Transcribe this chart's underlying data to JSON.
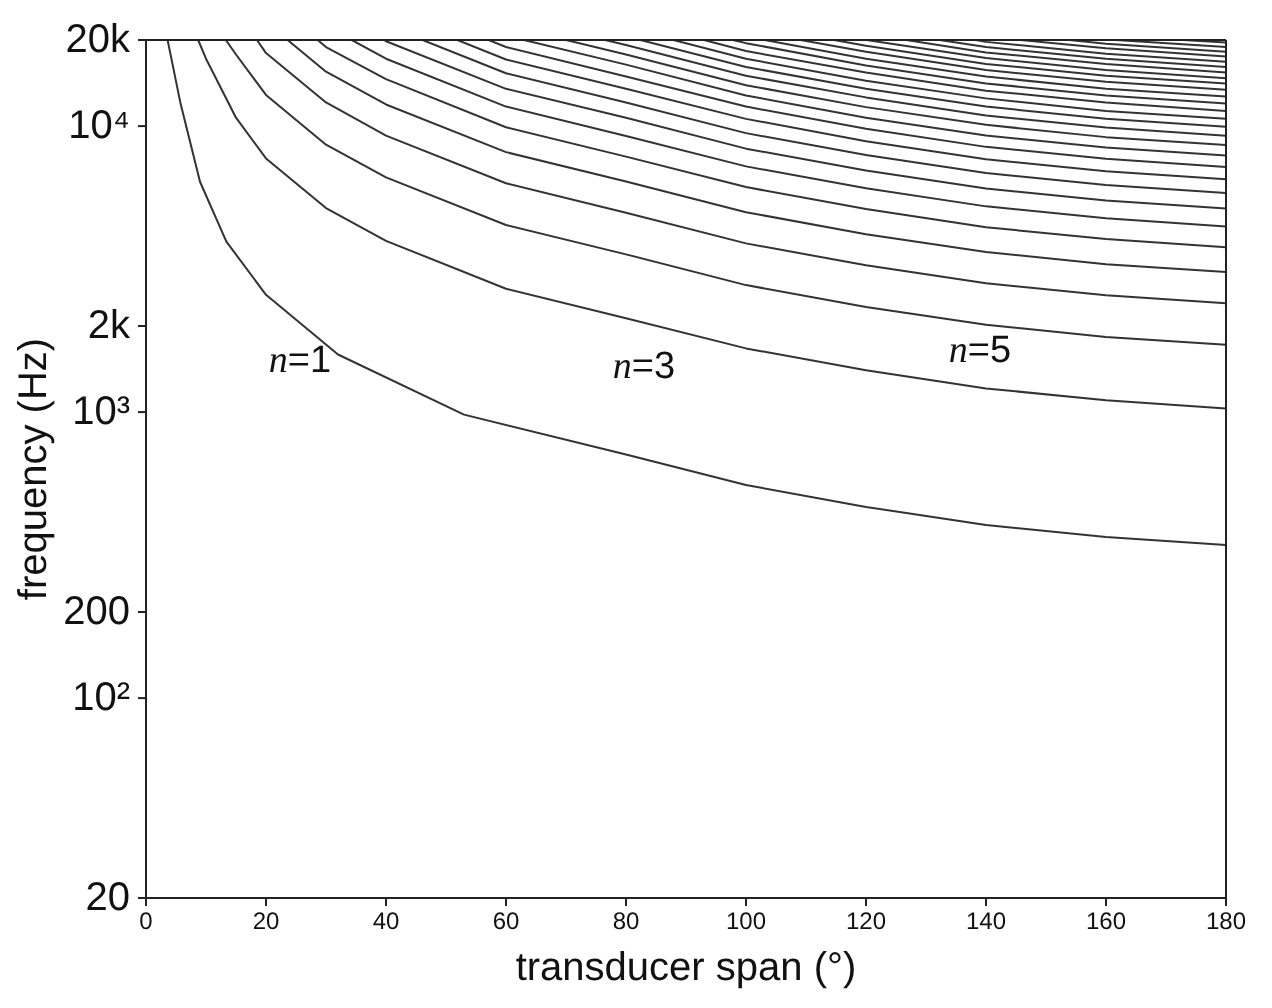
{
  "chart_data": {
    "type": "line",
    "xlabel": "transducer span (°)",
    "ylabel": "frequency (Hz)",
    "log": "y",
    "marker": "none",
    "line_style": "solid",
    "xlim": [
      0,
      180
    ],
    "xticks": [
      0,
      20,
      40,
      60,
      80,
      100,
      120,
      140,
      160,
      180
    ],
    "ylim": [
      20,
      20000
    ],
    "yticks": [
      {
        "value": 20,
        "label": "20"
      },
      {
        "value": 100,
        "label": "10²"
      },
      {
        "value": 200,
        "label": "200"
      },
      {
        "value": 1000,
        "label": "10³"
      },
      {
        "value": 2000,
        "label": "2k"
      },
      {
        "value": 10000,
        "label": "10⁴"
      },
      {
        "value": 20000,
        "label": "20k"
      }
    ],
    "annotations": [
      "n=1",
      "n=3",
      "n=5"
    ],
    "series": [
      {
        "color": "#333333",
        "x": [
          3.6,
          5.7,
          9,
          13.4,
          20,
          32,
          53,
          80,
          100,
          120,
          140,
          160,
          180
        ],
        "values": [
          20000,
          12150,
          6390,
          3945,
          2570,
          1590,
          980,
          711,
          556,
          466,
          403,
          366,
          343
        ]
      },
      {
        "color": "#333333",
        "x": [
          8.7,
          10,
          15,
          20,
          30,
          40,
          60,
          80,
          100,
          120,
          140,
          160,
          180
        ],
        "values": [
          20000,
          17200,
          10700,
          7710,
          5170,
          3970,
          2700,
          2130,
          1670,
          1400,
          1210,
          1100,
          1030
        ]
      },
      {
        "color": "#333333",
        "x": [
          13.3,
          15,
          20,
          30,
          40,
          60,
          80,
          100,
          120,
          140,
          160,
          180
        ],
        "values": [
          20000,
          17800,
          12850,
          8610,
          6620,
          4510,
          3560,
          2780,
          2330,
          2020,
          1830,
          1720
        ]
      },
      {
        "color": "#333333",
        "x": [
          18.5,
          20,
          30,
          40,
          60,
          80,
          100,
          120,
          140,
          160,
          180
        ],
        "values": [
          20000,
          18000,
          12100,
          9260,
          6310,
          4980,
          3890,
          3260,
          2820,
          2560,
          2400
        ]
      },
      {
        "color": "#333333",
        "x": [
          23.6,
          30,
          40,
          60,
          80,
          100,
          120,
          140,
          160,
          180
        ],
        "values": [
          20000,
          15500,
          11900,
          8110,
          6400,
          5000,
          4190,
          3630,
          3290,
          3090
        ]
      },
      {
        "color": "#333333",
        "x": [
          28.6,
          30,
          40,
          60,
          80,
          100,
          120,
          140,
          160,
          180
        ],
        "values": [
          20000,
          18900,
          14600,
          9910,
          7820,
          6120,
          5130,
          4430,
          4030,
          3770
        ]
      },
      {
        "color": "#333333",
        "x": [
          34.3,
          40,
          60,
          80,
          100,
          120,
          140,
          160,
          180
        ],
        "values": [
          20000,
          17200,
          11700,
          9240,
          7230,
          6060,
          5240,
          4760,
          4460
        ]
      },
      {
        "color": "#333333",
        "x": [
          39.7,
          40,
          60,
          80,
          100,
          120,
          140,
          160,
          180
        ],
        "values": [
          20000,
          19800,
          13500,
          10700,
          8340,
          6990,
          6050,
          5490,
          5150
        ]
      },
      {
        "color": "#333333",
        "x": [
          46.1,
          60,
          80,
          100,
          120,
          140,
          160,
          180
        ],
        "values": [
          20000,
          15300,
          12100,
          9450,
          7920,
          6850,
          6220,
          5830
        ]
      },
      {
        "color": "#333333",
        "x": [
          51.9,
          60,
          80,
          100,
          120,
          140,
          160,
          180
        ],
        "values": [
          20000,
          17100,
          13500,
          10600,
          8850,
          7660,
          6950,
          6520
        ]
      },
      {
        "color": "#333333",
        "x": [
          57.1,
          60,
          80,
          100,
          120,
          140,
          160,
          180
        ],
        "values": [
          20000,
          18900,
          14900,
          11700,
          9790,
          8460,
          7690,
          7200
        ]
      },
      {
        "color": "#333333",
        "x": [
          63,
          80,
          100,
          120,
          140,
          160,
          180
        ],
        "values": [
          20000,
          16400,
          12800,
          10700,
          9270,
          8420,
          7890
        ]
      },
      {
        "color": "#333333",
        "x": [
          70,
          80,
          100,
          120,
          140,
          160,
          180
        ],
        "values": [
          20000,
          17800,
          13900,
          11650,
          10100,
          9150,
          8580
        ]
      },
      {
        "color": "#333333",
        "x": [
          76.5,
          80,
          100,
          120,
          140,
          160,
          180
        ],
        "values": [
          20000,
          19200,
          15000,
          12600,
          10900,
          9880,
          9260
        ]
      },
      {
        "color": "#333333",
        "x": [
          82.4,
          100,
          120,
          140,
          160,
          180
        ],
        "values": [
          20000,
          16100,
          13500,
          11700,
          10600,
          9950
        ]
      },
      {
        "color": "#333333",
        "x": [
          87.9,
          100,
          120,
          140,
          160,
          180
        ],
        "values": [
          20000,
          17200,
          14400,
          12500,
          11300,
          10600
        ]
      },
      {
        "color": "#333333",
        "x": [
          93,
          100,
          120,
          140,
          160,
          180
        ],
        "values": [
          20000,
          18300,
          15400,
          13300,
          12100,
          11300
        ]
      },
      {
        "color": "#333333",
        "x": [
          97.8,
          100,
          120,
          140,
          160,
          180
        ],
        "values": [
          20000,
          19500,
          16300,
          14100,
          12800,
          12000
        ]
      },
      {
        "color": "#333333",
        "x": [
          103.1,
          120,
          140,
          160,
          180
        ],
        "values": [
          20000,
          17200,
          14900,
          13500,
          12700
        ]
      },
      {
        "color": "#333333",
        "x": [
          109.1,
          120,
          140,
          160,
          180
        ],
        "values": [
          20000,
          18200,
          15700,
          14300,
          13400
        ]
      },
      {
        "color": "#333333",
        "x": [
          114.7,
          120,
          140,
          160,
          180
        ],
        "values": [
          20000,
          19100,
          16500,
          15000,
          14100
        ]
      },
      {
        "color": "#333333",
        "x": [
          120.1,
          140,
          160,
          180
        ],
        "values": [
          20000,
          17300,
          15700,
          14700
        ]
      },
      {
        "color": "#333333",
        "x": [
          126.7,
          140,
          160,
          180
        ],
        "values": [
          20000,
          18100,
          16500,
          15400
        ]
      },
      {
        "color": "#333333",
        "x": [
          132.3,
          140,
          160,
          180
        ],
        "values": [
          20000,
          18900,
          17200,
          16100
        ]
      },
      {
        "color": "#333333",
        "x": [
          138.3,
          140,
          160,
          180
        ],
        "values": [
          20000,
          19700,
          17900,
          16800
        ]
      },
      {
        "color": "#333333",
        "x": [
          145.8,
          160,
          180
        ],
        "values": [
          20000,
          18700,
          17500
        ]
      },
      {
        "color": "#333333",
        "x": [
          153.9,
          160,
          180
        ],
        "values": [
          20000,
          19400,
          18200
        ]
      },
      {
        "color": "#333333",
        "x": [
          161.7,
          180
        ],
        "values": [
          20000,
          18900
        ]
      },
      {
        "color": "#333333",
        "x": [
          172.9,
          180
        ],
        "values": [
          20000,
          19600
        ]
      }
    ]
  }
}
